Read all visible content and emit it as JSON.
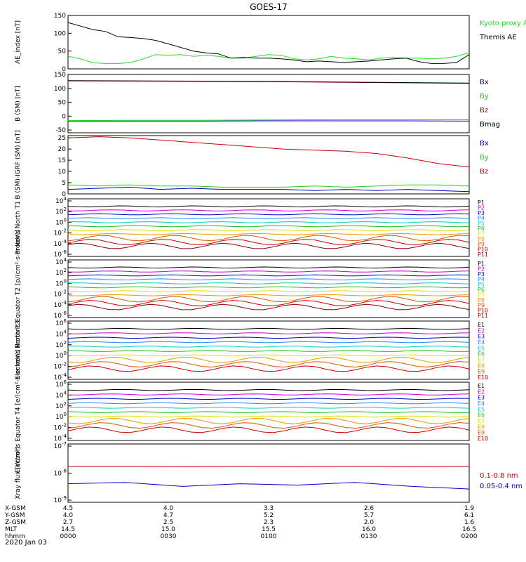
{
  "title": "GOES-17",
  "date_label": "2020 Jan 03",
  "colors": {
    "black": "#000000",
    "kyoto": "#22dd22",
    "bx": "#0000cc",
    "by": "#22cc22",
    "bz": "#cc0000",
    "bmag": "#000000"
  },
  "chart_data": [
    {
      "type": "line",
      "panel": "AE index",
      "ylabel": "AE_index [nT]",
      "ylim": [
        0,
        150
      ],
      "yticks": [
        "0",
        "50",
        "100",
        "150"
      ],
      "series": [
        {
          "name": "Kyoto proxy AE",
          "color": "#22dd22",
          "values": [
            35,
            28,
            17,
            15,
            15,
            18,
            28,
            40,
            38,
            40,
            35,
            38,
            35,
            30,
            30,
            35,
            40,
            38,
            28,
            25,
            28,
            35,
            30,
            28,
            25,
            30,
            32,
            30,
            30,
            28,
            30,
            35,
            45
          ]
        },
        {
          "name": "Themis AE",
          "color": "#000000",
          "values": [
            130,
            120,
            110,
            105,
            90,
            88,
            85,
            80,
            70,
            60,
            50,
            45,
            42,
            30,
            32,
            30,
            30,
            28,
            25,
            20,
            22,
            20,
            18,
            20,
            22,
            25,
            28,
            30,
            20,
            15,
            15,
            18,
            40
          ]
        }
      ]
    },
    {
      "type": "line",
      "panel": "B (SM)",
      "ylabel": "B (SM) [nT]",
      "ylim": [
        -60,
        150
      ],
      "yticks": [
        "-50",
        "0",
        "50",
        "100",
        "150"
      ],
      "series": [
        {
          "name": "Bx",
          "color": "#0000cc",
          "values": [
            -18,
            -18,
            -18,
            -17,
            -17,
            -17,
            -18
          ]
        },
        {
          "name": "By",
          "color": "#22cc22",
          "values": [
            -16,
            -15,
            -15,
            -14,
            -13,
            -13,
            -13
          ]
        },
        {
          "name": "Bz",
          "color": "#cc0000",
          "values": [
            127,
            126,
            125,
            124,
            122,
            120,
            118
          ]
        },
        {
          "name": "Bmag",
          "color": "#000000",
          "values": [
            128,
            127,
            126,
            125,
            123,
            121,
            119
          ]
        }
      ]
    },
    {
      "type": "line",
      "panel": "B (SM)-IGRF (SM)",
      "ylabel": "B (SM)-IGRF (SM) [nT]",
      "ylim": [
        0,
        26
      ],
      "yticks": [
        "0",
        "5",
        "10",
        "15",
        "20",
        "25"
      ],
      "series": [
        {
          "name": "Bx",
          "color": "#0000cc",
          "values": [
            2,
            2.5,
            3,
            2,
            2.5,
            2,
            2,
            2,
            1.5,
            2,
            1.5,
            2,
            1.5,
            1
          ]
        },
        {
          "name": "By",
          "color": "#22cc22",
          "values": [
            4,
            3.5,
            4,
            3.5,
            3.5,
            3,
            3,
            3,
            3.5,
            3,
            3.5,
            4,
            4,
            3.5
          ]
        },
        {
          "name": "Bz",
          "color": "#cc0000",
          "values": [
            25,
            25.5,
            25,
            24,
            23,
            22,
            21,
            20,
            19.5,
            19,
            18,
            16,
            13.5,
            12
          ]
        }
      ]
    },
    {
      "type": "line",
      "panel": "Protons North T1",
      "ylabel": "Protons North T1",
      "yscale": "log",
      "yticks": [
        "10^4",
        "10^2",
        "10^0",
        "10^-2",
        "10^-4",
        "10^-6"
      ],
      "series_labels": [
        "P1",
        "P2",
        "P3",
        "P4",
        "P5",
        "P6",
        "P7",
        "P8",
        "P9",
        "P10",
        "P11"
      ]
    },
    {
      "type": "line",
      "panel": "Protons Equator T2",
      "ylabel": "Protons Equator T2 [p/(cm^2-s-sr-keV)]",
      "yscale": "log",
      "yticks": [
        "10^4",
        "10^2",
        "10^0",
        "10^-2",
        "10^-4",
        "10^-6"
      ],
      "series_labels": [
        "P1",
        "P2",
        "P3",
        "P4",
        "P5",
        "P6",
        "P7",
        "P8",
        "P9",
        "P10",
        "P11"
      ]
    },
    {
      "type": "line",
      "panel": "Electrons North T3",
      "ylabel": "Electrons North T3",
      "yscale": "log",
      "yticks": [
        "10^6",
        "10^4",
        "10^2",
        "10^0",
        "10^-2",
        "10^-4"
      ],
      "series_labels": [
        "E1",
        "E2",
        "E3",
        "E4",
        "E5",
        "E6",
        "E7",
        "E8",
        "E9",
        "E10"
      ]
    },
    {
      "type": "line",
      "panel": "Electrons Equator T4",
      "ylabel": "Electrons Equator T4 [e/(cm^2-s-sr-keV)]",
      "yscale": "log",
      "yticks": [
        "10^6",
        "10^4",
        "10^2",
        "10^0",
        "10^-2",
        "10^-4"
      ],
      "series_labels": [
        "E1",
        "E2",
        "E3",
        "E4",
        "E5",
        "E6",
        "E7",
        "E8",
        "E9",
        "E10"
      ]
    },
    {
      "type": "line",
      "panel": "Xray flux",
      "ylabel": "Xray flux [W/m^2]",
      "yscale": "log",
      "yticks": [
        "10^-7",
        "10^-8",
        "10^-9"
      ],
      "series": [
        {
          "name": "0.1-0.8 nm",
          "color": "#cc0000",
          "log10_values": [
            -7.85,
            -7.85,
            -7.86,
            -7.85,
            -7.86,
            -7.85,
            -7.86,
            -7.85
          ]
        },
        {
          "name": "0.05-0.4 nm",
          "color": "#0000cc",
          "log10_values": [
            -8.5,
            -8.45,
            -8.6,
            -8.5,
            -8.55,
            -8.45,
            -8.6,
            -8.7
          ]
        }
      ]
    }
  ],
  "x_axis": {
    "row_labels": [
      "X-GSM",
      "Y-GSM",
      "Z-GSM",
      "MLT",
      "hhmm"
    ],
    "columns": [
      [
        "4.5",
        "4.0",
        "2.7",
        "14.5",
        "0000"
      ],
      [
        "4.0",
        "4.7",
        "2.5",
        "15.0",
        "0030"
      ],
      [
        "3.3",
        "5.2",
        "2.3",
        "15.5",
        "0100"
      ],
      [
        "2.6",
        "5.7",
        "2.0",
        "16.0",
        "0130"
      ],
      [
        "1.9",
        "6.1",
        "1.6",
        "16.5",
        "0200"
      ]
    ]
  }
}
